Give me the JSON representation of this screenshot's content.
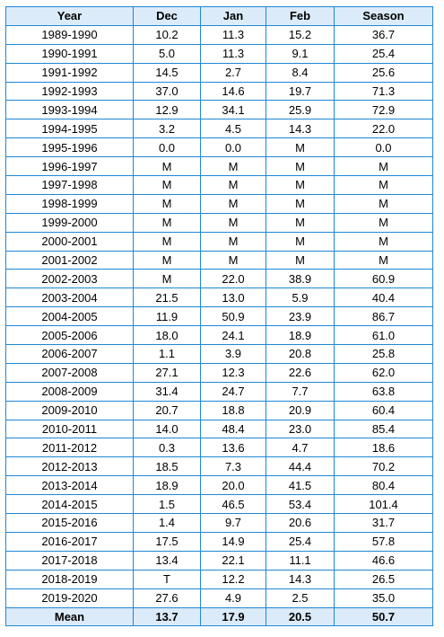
{
  "headers": [
    "Year",
    "Dec",
    "Jan",
    "Feb",
    "Season"
  ],
  "rows": [
    [
      "1989-1990",
      "10.2",
      "11.3",
      "15.2",
      "36.7"
    ],
    [
      "1990-1991",
      "5.0",
      "11.3",
      "9.1",
      "25.4"
    ],
    [
      "1991-1992",
      "14.5",
      "2.7",
      "8.4",
      "25.6"
    ],
    [
      "1992-1993",
      "37.0",
      "14.6",
      "19.7",
      "71.3"
    ],
    [
      "1993-1994",
      "12.9",
      "34.1",
      "25.9",
      "72.9"
    ],
    [
      "1994-1995",
      "3.2",
      "4.5",
      "14.3",
      "22.0"
    ],
    [
      "1995-1996",
      "0.0",
      "0.0",
      "M",
      "0.0"
    ],
    [
      "1996-1997",
      "M",
      "M",
      "M",
      "M"
    ],
    [
      "1997-1998",
      "M",
      "M",
      "M",
      "M"
    ],
    [
      "1998-1999",
      "M",
      "M",
      "M",
      "M"
    ],
    [
      "1999-2000",
      "M",
      "M",
      "M",
      "M"
    ],
    [
      "2000-2001",
      "M",
      "M",
      "M",
      "M"
    ],
    [
      "2001-2002",
      "M",
      "M",
      "M",
      "M"
    ],
    [
      "2002-2003",
      "M",
      "22.0",
      "38.9",
      "60.9"
    ],
    [
      "2003-2004",
      "21.5",
      "13.0",
      "5.9",
      "40.4"
    ],
    [
      "2004-2005",
      "11.9",
      "50.9",
      "23.9",
      "86.7"
    ],
    [
      "2005-2006",
      "18.0",
      "24.1",
      "18.9",
      "61.0"
    ],
    [
      "2006-2007",
      "1.1",
      "3.9",
      "20.8",
      "25.8"
    ],
    [
      "2007-2008",
      "27.1",
      "12.3",
      "22.6",
      "62.0"
    ],
    [
      "2008-2009",
      "31.4",
      "24.7",
      "7.7",
      "63.8"
    ],
    [
      "2009-2010",
      "20.7",
      "18.8",
      "20.9",
      "60.4"
    ],
    [
      "2010-2011",
      "14.0",
      "48.4",
      "23.0",
      "85.4"
    ],
    [
      "2011-2012",
      "0.3",
      "13.6",
      "4.7",
      "18.6"
    ],
    [
      "2012-2013",
      "18.5",
      "7.3",
      "44.4",
      "70.2"
    ],
    [
      "2013-2014",
      "18.9",
      "20.0",
      "41.5",
      "80.4"
    ],
    [
      "2014-2015",
      "1.5",
      "46.5",
      "53.4",
      "101.4"
    ],
    [
      "2015-2016",
      "1.4",
      "9.7",
      "20.6",
      "31.7"
    ],
    [
      "2016-2017",
      "17.5",
      "14.9",
      "25.4",
      "57.8"
    ],
    [
      "2017-2018",
      "13.4",
      "22.1",
      "11.1",
      "46.6"
    ],
    [
      "2018-2019",
      "T",
      "12.2",
      "14.3",
      "26.5"
    ],
    [
      "2019-2020",
      "27.6",
      "4.9",
      "2.5",
      "35.0"
    ]
  ],
  "mean": [
    "Mean",
    "13.7",
    "17.9",
    "20.5",
    "50.7"
  ],
  "colors": {
    "border": "#1f87d6",
    "header_bg": "#dcebf9"
  }
}
